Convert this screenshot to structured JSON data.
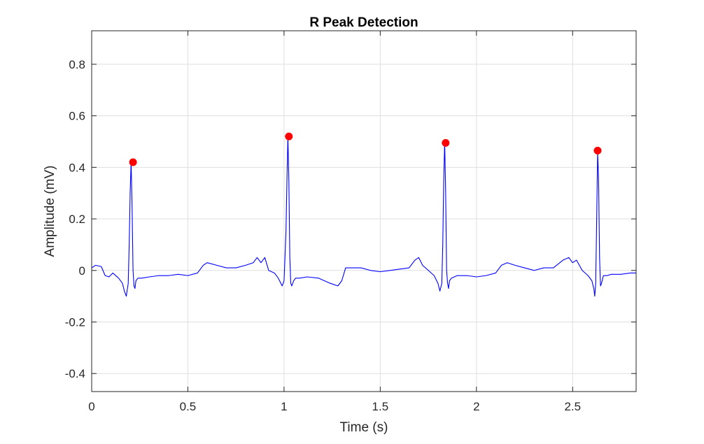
{
  "chart_data": {
    "type": "line",
    "title": "R Peak Detection",
    "xlabel": "Time (s)",
    "ylabel": "Amplitude (mV)",
    "xlim": [
      0,
      2.83
    ],
    "ylim": [
      -0.47,
      0.93
    ],
    "xticks": [
      0,
      0.5,
      1,
      1.5,
      2,
      2.5
    ],
    "xtick_labels": [
      "0",
      "0.5",
      "1",
      "1.5",
      "2",
      "2.5"
    ],
    "yticks": [
      -0.4,
      -0.2,
      0,
      0.2,
      0.4,
      0.6,
      0.8
    ],
    "ytick_labels": [
      "-0.4",
      "-0.2",
      "0",
      "0.2",
      "0.4",
      "0.6",
      "0.8"
    ],
    "grid": true,
    "series": [
      {
        "kind": "line",
        "color": "#0000ff",
        "x": [
          0,
          0.02,
          0.05,
          0.07,
          0.09,
          0.11,
          0.14,
          0.16,
          0.17,
          0.18,
          0.19,
          0.195,
          0.2,
          0.205,
          0.21,
          0.215,
          0.22,
          0.225,
          0.23,
          0.24,
          0.26,
          0.3,
          0.35,
          0.4,
          0.45,
          0.5,
          0.55,
          0.58,
          0.6,
          0.65,
          0.7,
          0.75,
          0.8,
          0.84,
          0.86,
          0.88,
          0.9,
          0.92,
          0.95,
          0.97,
          0.99,
          1.0,
          1.01,
          1.015,
          1.02,
          1.025,
          1.03,
          1.035,
          1.04,
          1.05,
          1.06,
          1.08,
          1.12,
          1.18,
          1.24,
          1.28,
          1.3,
          1.32,
          1.35,
          1.4,
          1.45,
          1.5,
          1.55,
          1.6,
          1.65,
          1.68,
          1.7,
          1.72,
          1.75,
          1.78,
          1.8,
          1.81,
          1.82,
          1.825,
          1.83,
          1.835,
          1.84,
          1.845,
          1.85,
          1.855,
          1.86,
          1.87,
          1.9,
          1.95,
          2.0,
          2.05,
          2.1,
          2.13,
          2.16,
          2.2,
          2.25,
          2.3,
          2.35,
          2.4,
          2.45,
          2.48,
          2.5,
          2.52,
          2.55,
          2.58,
          2.6,
          2.61,
          2.615,
          2.62,
          2.625,
          2.63,
          2.635,
          2.64,
          2.645,
          2.65,
          2.66,
          2.68,
          2.7,
          2.75,
          2.8,
          2.83
        ],
        "y": [
          0.01,
          0.02,
          0.015,
          -0.02,
          -0.025,
          -0.01,
          -0.03,
          -0.05,
          -0.08,
          -0.1,
          -0.05,
          0.1,
          0.3,
          0.42,
          0.25,
          0.0,
          -0.06,
          -0.07,
          -0.04,
          -0.03,
          -0.03,
          -0.025,
          -0.02,
          -0.02,
          -0.015,
          -0.02,
          -0.01,
          0.02,
          0.03,
          0.02,
          0.01,
          0.01,
          0.02,
          0.03,
          0.05,
          0.03,
          0.05,
          0.0,
          -0.01,
          -0.03,
          -0.06,
          -0.04,
          0.15,
          0.35,
          0.52,
          0.35,
          0.05,
          -0.05,
          -0.06,
          -0.04,
          -0.03,
          -0.03,
          -0.025,
          -0.03,
          -0.05,
          -0.06,
          -0.04,
          0.01,
          0.01,
          0.01,
          0.0,
          -0.005,
          0.0,
          0.005,
          0.01,
          0.04,
          0.05,
          0.02,
          0.0,
          -0.02,
          -0.05,
          -0.08,
          -0.05,
          0.1,
          0.35,
          0.5,
          0.3,
          0.0,
          -0.05,
          -0.07,
          -0.04,
          -0.03,
          -0.02,
          -0.02,
          -0.025,
          -0.02,
          -0.01,
          0.02,
          0.03,
          0.02,
          0.01,
          0.0,
          0.01,
          0.01,
          0.04,
          0.05,
          0.03,
          0.04,
          0.0,
          -0.02,
          -0.04,
          -0.07,
          -0.1,
          -0.05,
          0.2,
          0.46,
          0.35,
          0.05,
          -0.06,
          -0.05,
          -0.02,
          -0.02,
          -0.015,
          -0.015,
          -0.01,
          -0.01
        ]
      },
      {
        "kind": "markers",
        "color": "#ff0000",
        "x": [
          0.215,
          1.025,
          1.84,
          2.63
        ],
        "y": [
          0.42,
          0.52,
          0.495,
          0.465
        ]
      }
    ]
  }
}
